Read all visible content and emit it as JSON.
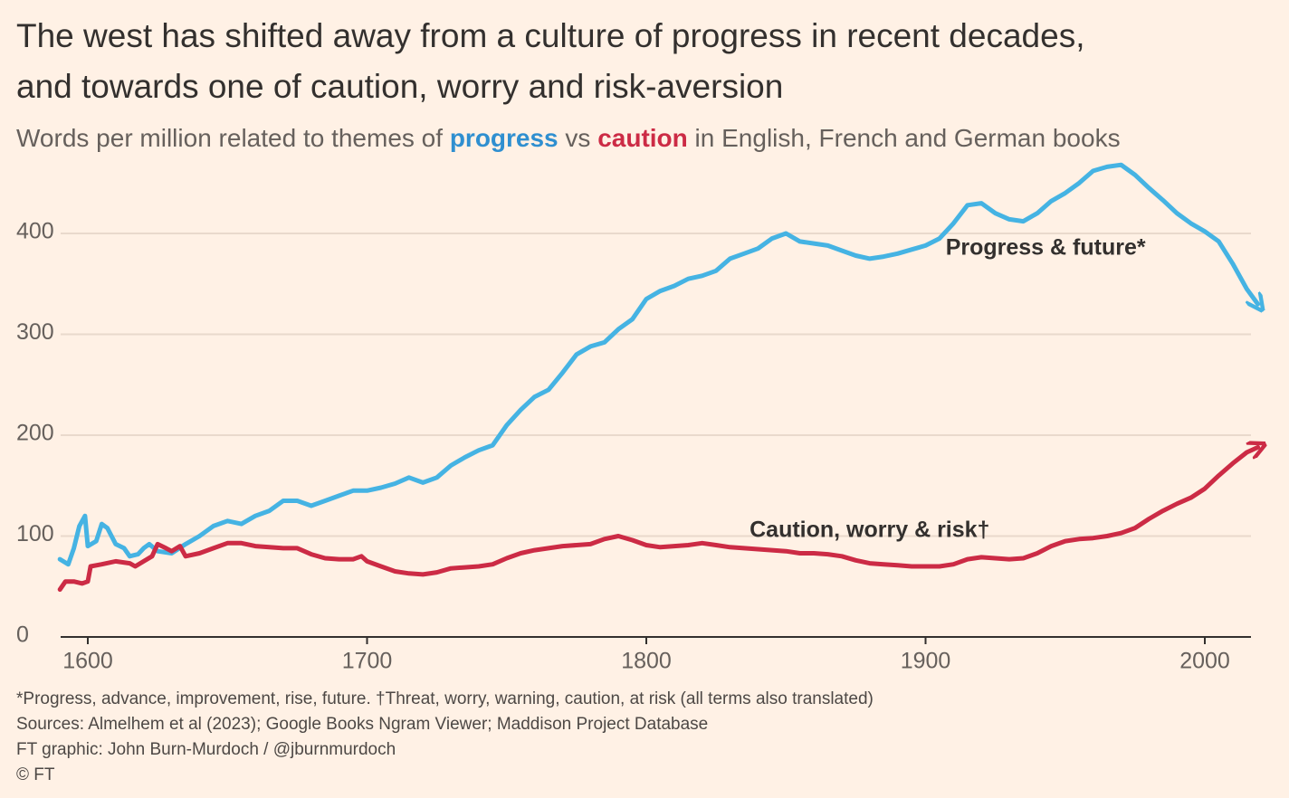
{
  "chart_data": {
    "type": "line",
    "title": [
      "The west has shifted away from a culture of progress in recent decades,",
      "and towards one of caution, worry and risk-aversion"
    ],
    "subtitle": [
      {
        "text": "Words per million related to themes of ",
        "color": "#66605c"
      },
      {
        "text": "progress",
        "color": "#2f8fd0"
      },
      {
        "text": " vs ",
        "color": "#66605c"
      },
      {
        "text": "caution",
        "color": "#cc2b45"
      },
      {
        "text": " in English, French and German books",
        "color": "#66605c"
      }
    ],
    "xlim": [
      1590,
      2020
    ],
    "xticks": [
      1600,
      1700,
      1800,
      1900,
      2000
    ],
    "ylim": [
      0,
      480
    ],
    "yticks": [
      0,
      100,
      200,
      300,
      400
    ],
    "grid": true,
    "series": [
      {
        "name": "Progress & future*",
        "color": "#45b3e3",
        "label_color": "#2f8fd0",
        "x": [
          1590,
          1593,
          1595,
          1597,
          1599,
          1600,
          1603,
          1605,
          1607,
          1610,
          1613,
          1615,
          1618,
          1620,
          1622,
          1625,
          1630,
          1635,
          1640,
          1645,
          1650,
          1655,
          1660,
          1665,
          1670,
          1675,
          1680,
          1685,
          1690,
          1695,
          1700,
          1705,
          1710,
          1715,
          1720,
          1725,
          1730,
          1735,
          1740,
          1745,
          1750,
          1755,
          1760,
          1765,
          1770,
          1775,
          1780,
          1785,
          1790,
          1795,
          1800,
          1805,
          1810,
          1815,
          1820,
          1825,
          1830,
          1835,
          1840,
          1845,
          1850,
          1855,
          1860,
          1865,
          1870,
          1875,
          1880,
          1885,
          1890,
          1895,
          1900,
          1905,
          1910,
          1915,
          1920,
          1925,
          1930,
          1935,
          1940,
          1945,
          1950,
          1955,
          1960,
          1965,
          1970,
          1975,
          1980,
          1985,
          1990,
          1995,
          2000,
          2005,
          2010,
          2015,
          2019
        ],
        "values": [
          77,
          72,
          88,
          110,
          120,
          90,
          95,
          112,
          108,
          92,
          88,
          80,
          82,
          88,
          92,
          85,
          83,
          92,
          100,
          110,
          115,
          112,
          120,
          125,
          135,
          135,
          130,
          135,
          140,
          145,
          145,
          148,
          152,
          158,
          153,
          158,
          170,
          178,
          185,
          190,
          210,
          225,
          238,
          245,
          262,
          280,
          288,
          292,
          305,
          315,
          335,
          343,
          348,
          355,
          358,
          363,
          375,
          380,
          385,
          395,
          400,
          392,
          390,
          388,
          383,
          378,
          375,
          377,
          380,
          384,
          388,
          395,
          410,
          428,
          430,
          420,
          414,
          412,
          420,
          432,
          440,
          450,
          462,
          466,
          468,
          458,
          445,
          433,
          420,
          410,
          402,
          392,
          370,
          345,
          330
        ]
      },
      {
        "name": "Caution, worry & risk†",
        "color": "#cc2b45",
        "label_color": "#cc2b45",
        "x": [
          1590,
          1592,
          1595,
          1598,
          1600,
          1601,
          1605,
          1610,
          1615,
          1617,
          1620,
          1623,
          1625,
          1628,
          1630,
          1633,
          1635,
          1640,
          1645,
          1650,
          1655,
          1660,
          1665,
          1670,
          1675,
          1680,
          1685,
          1690,
          1695,
          1698,
          1700,
          1705,
          1710,
          1715,
          1720,
          1725,
          1730,
          1735,
          1740,
          1745,
          1750,
          1755,
          1760,
          1765,
          1770,
          1775,
          1780,
          1785,
          1790,
          1795,
          1800,
          1805,
          1810,
          1815,
          1820,
          1825,
          1830,
          1835,
          1840,
          1845,
          1850,
          1855,
          1860,
          1865,
          1870,
          1875,
          1880,
          1885,
          1890,
          1895,
          1900,
          1905,
          1910,
          1915,
          1920,
          1925,
          1930,
          1935,
          1940,
          1945,
          1950,
          1955,
          1960,
          1965,
          1970,
          1975,
          1980,
          1985,
          1990,
          1995,
          2000,
          2005,
          2010,
          2015,
          2019
        ],
        "values": [
          47,
          55,
          55,
          53,
          55,
          70,
          72,
          75,
          73,
          70,
          75,
          80,
          92,
          88,
          85,
          90,
          80,
          83,
          88,
          93,
          93,
          90,
          89,
          88,
          88,
          82,
          78,
          77,
          77,
          80,
          75,
          70,
          65,
          63,
          62,
          64,
          68,
          69,
          70,
          72,
          78,
          83,
          86,
          88,
          90,
          91,
          92,
          97,
          100,
          96,
          91,
          89,
          90,
          91,
          93,
          91,
          89,
          88,
          87,
          86,
          85,
          83,
          83,
          82,
          80,
          76,
          73,
          72,
          71,
          70,
          70,
          70,
          72,
          77,
          79,
          78,
          77,
          78,
          83,
          90,
          95,
          97,
          98,
          100,
          103,
          108,
          117,
          125,
          132,
          138,
          147,
          160,
          172,
          183,
          188
        ]
      }
    ],
    "annotations": [
      {
        "text": "Progress & future*",
        "x": 1943,
        "y": 385,
        "series": 0
      },
      {
        "text": "Caution, worry & risk†",
        "x": 1880,
        "y": 105,
        "series": 1
      }
    ],
    "notes": [
      "*Progress, advance, improvement, rise, future. †Threat, worry, warning, caution, at risk (all terms also translated)",
      "Sources: Almelhem et al (2023); Google Books Ngram Viewer; Maddison Project Database",
      "FT graphic: John Burn-Murdoch / @jburnmurdoch",
      "© FT"
    ]
  }
}
